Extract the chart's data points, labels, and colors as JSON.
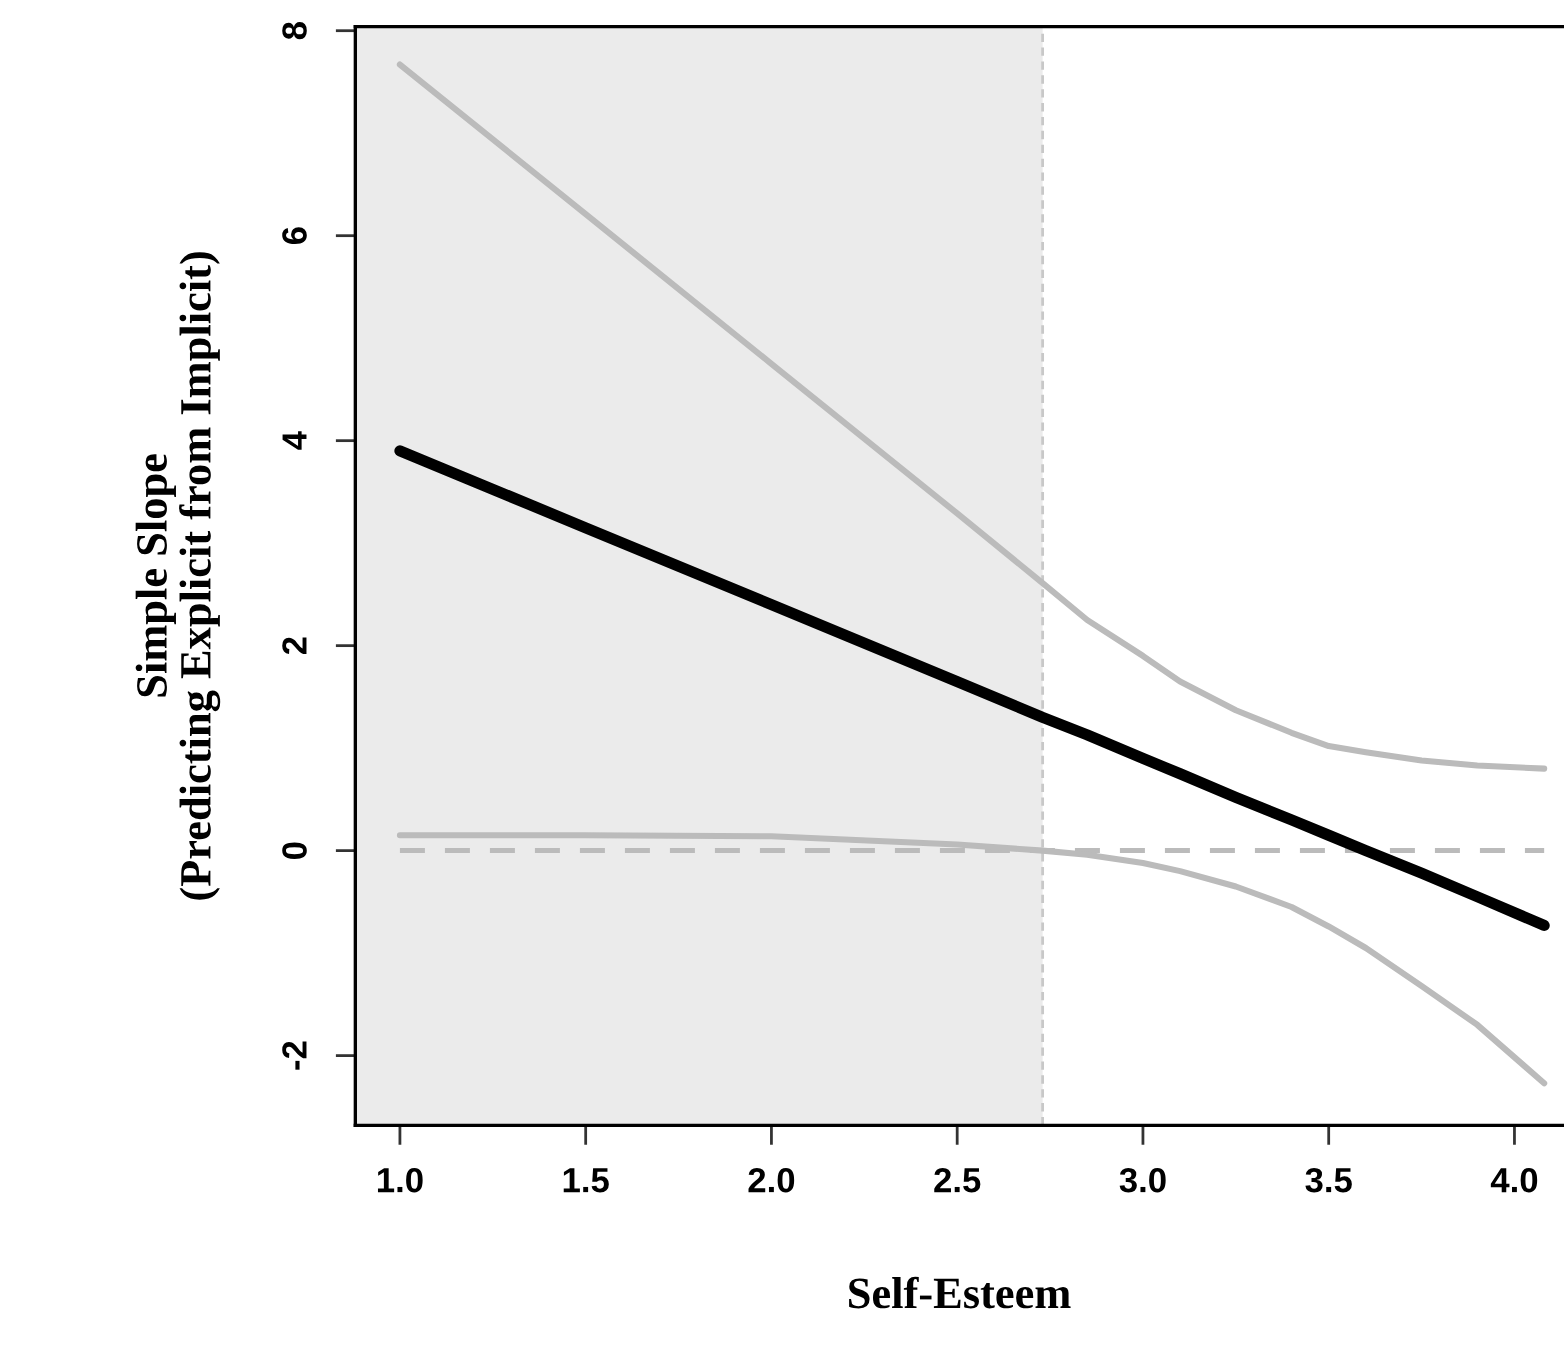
{
  "chart_data": {
    "type": "line",
    "xlabel": "Self-Esteem",
    "ylabel": "Simple Slope\n(Predicting Explicit from Implicit)",
    "x": [
      1.0,
      1.5,
      2.0,
      2.5,
      2.73,
      2.85,
      3.0,
      3.1,
      3.25,
      3.4,
      3.5,
      3.6,
      3.75,
      3.9,
      4.08
    ],
    "series": [
      {
        "color": "#000000",
        "values": [
          3.9,
          3.15,
          2.4,
          1.65,
          1.3,
          1.13,
          0.9,
          0.75,
          0.52,
          0.3,
          0.15,
          0.0,
          -0.22,
          -0.45,
          -0.73
        ]
      },
      {
        "color": "#bbbbbb",
        "values": [
          7.67,
          6.21,
          4.75,
          3.29,
          2.61,
          2.25,
          1.9,
          1.65,
          1.37,
          1.15,
          1.02,
          0.96,
          0.88,
          0.83,
          0.8
        ]
      },
      {
        "color": "#bbbbbb",
        "values": [
          0.15,
          0.15,
          0.14,
          0.06,
          0.0,
          -0.04,
          -0.12,
          -0.2,
          -0.35,
          -0.55,
          -0.74,
          -0.95,
          -1.32,
          -1.7,
          -2.27
        ]
      }
    ],
    "xlim": [
      0.88,
      4.13
    ],
    "ylim": [
      -2.68,
      8.04
    ],
    "xticks": [
      {
        "value": 1.0,
        "label": "1.0"
      },
      {
        "value": 1.5,
        "label": "1.5"
      },
      {
        "value": 2.0,
        "label": "2.0"
      },
      {
        "value": 2.5,
        "label": "2.5"
      },
      {
        "value": 3.0,
        "label": "3.0"
      },
      {
        "value": 3.5,
        "label": "3.5"
      },
      {
        "value": 4.0,
        "label": "4.0"
      }
    ],
    "yticks": [
      {
        "value": -2,
        "label": "-2"
      },
      0,
      2,
      4,
      6,
      8
    ],
    "ref_lines": [
      {
        "axis": "x",
        "value": 2.73,
        "color": "#c8c8c8",
        "line_style": "dashed"
      },
      {
        "axis": "y",
        "value": 0,
        "color": "#bbbbbb",
        "line_style": "dashed"
      }
    ],
    "bands": [
      {
        "axis": "x",
        "from": 0.88,
        "to": 2.73,
        "color": "#ebebeb"
      }
    ],
    "grid": false,
    "marker": "none",
    "line_style": "solid"
  }
}
